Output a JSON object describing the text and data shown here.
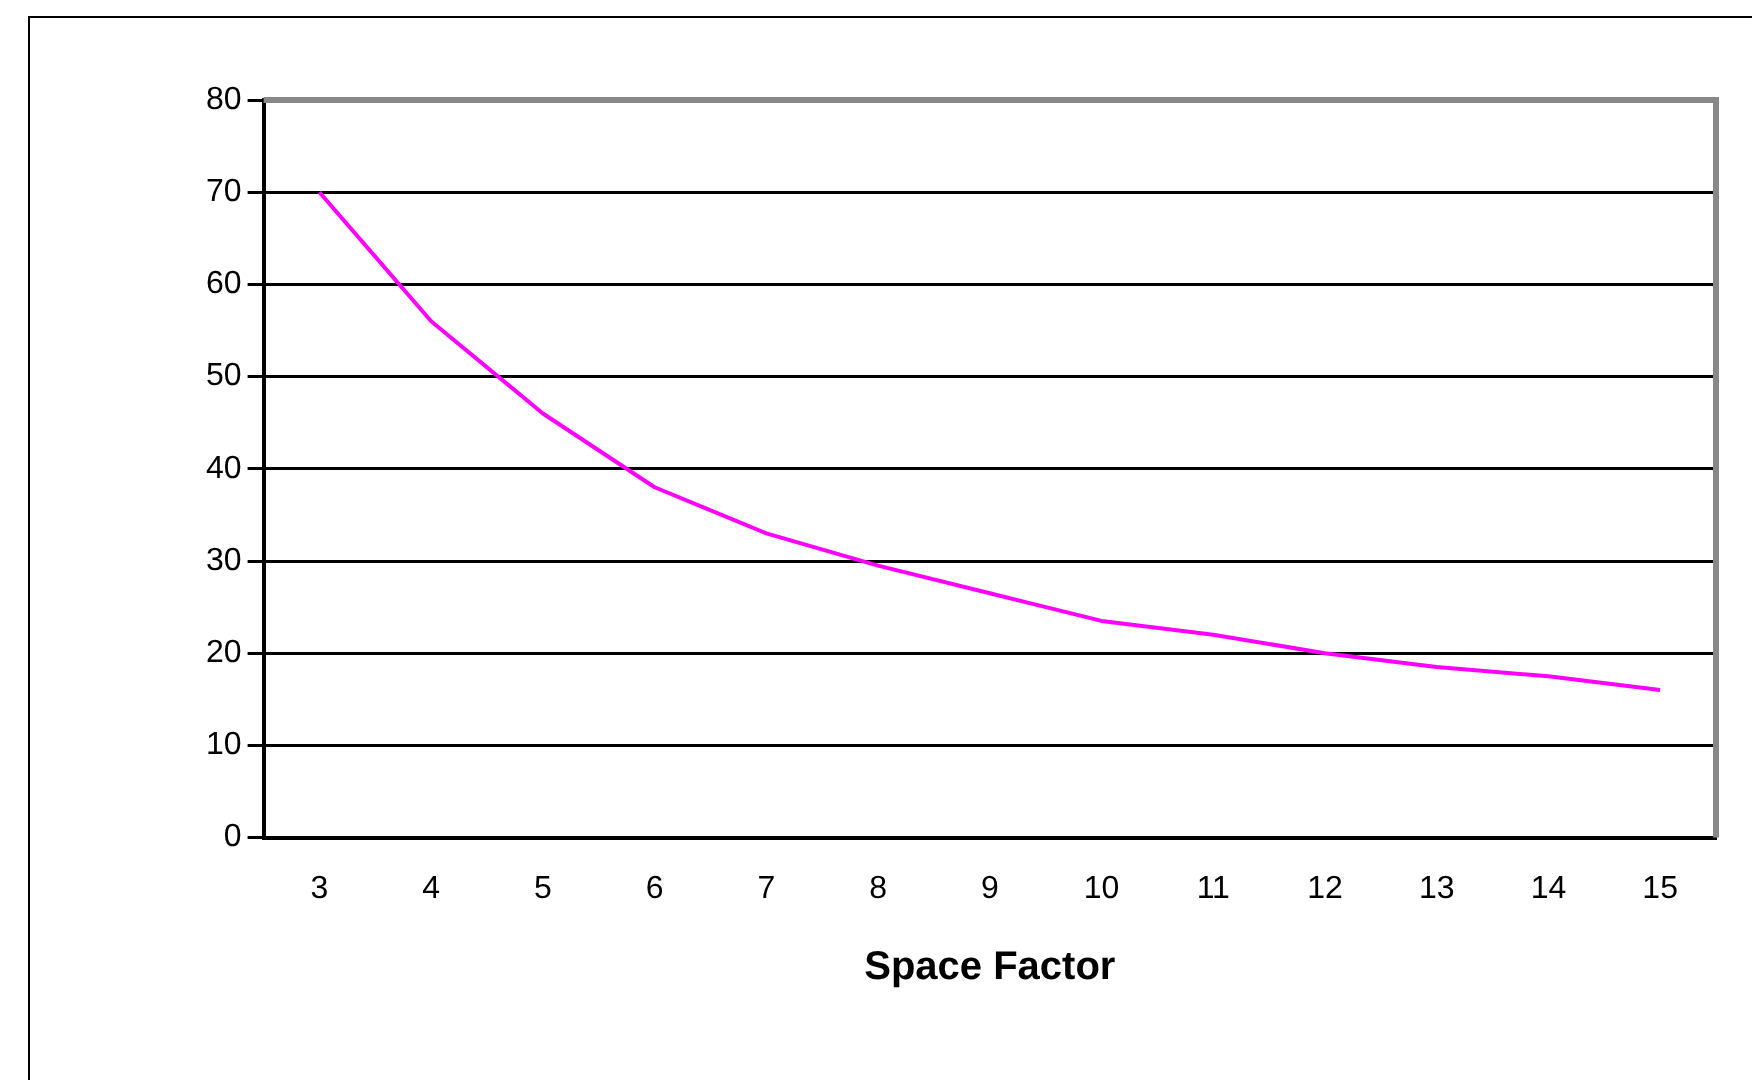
{
  "chart_data": {
    "type": "line",
    "xlabel": "Space Factor",
    "categories": [
      "3",
      "4",
      "5",
      "6",
      "7",
      "8",
      "9",
      "10",
      "11",
      "12",
      "13",
      "14",
      "15"
    ],
    "series": [
      {
        "color": "#ff00ff",
        "values": [
          70,
          56,
          46,
          38,
          33,
          29.5,
          26.5,
          23.5,
          22,
          20,
          18.5,
          17.5,
          16
        ]
      }
    ],
    "ylim": [
      0,
      80
    ],
    "yticks": [
      0,
      10,
      20,
      30,
      40,
      50,
      60,
      70,
      80
    ],
    "grid": "y",
    "marker": "none",
    "line_style": "solid",
    "legend": false
  }
}
